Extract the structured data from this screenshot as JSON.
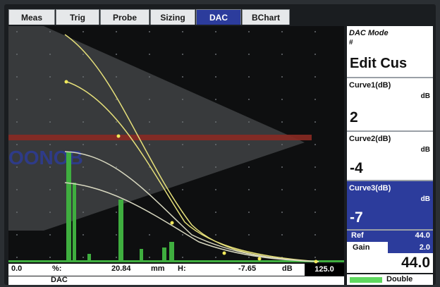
{
  "tabs": [
    {
      "label": "Meas",
      "active": false
    },
    {
      "label": "Trig",
      "active": false
    },
    {
      "label": "Probe",
      "active": false
    },
    {
      "label": "Sizing",
      "active": false
    },
    {
      "label": "DAC",
      "active": true
    },
    {
      "label": "BChart",
      "active": false
    }
  ],
  "watermark": "OONOB",
  "readout": {
    "left_value": "0.0",
    "percent_label": "%:",
    "distance_value": "20.84",
    "distance_unit": "mm",
    "h_label": "H:",
    "db_value": "-7.65",
    "db_unit": "dB",
    "range_value": "125.0"
  },
  "status": {
    "text": "DAC"
  },
  "panel": {
    "mode_label": "DAC Mode",
    "mode_sub": "#",
    "mode_value": "Edit Cus",
    "curve1": {
      "label": "Curve1(dB)",
      "unit": "dB",
      "value": "2"
    },
    "curve2": {
      "label": "Curve2(dB)",
      "unit": "dB",
      "value": "-4"
    },
    "curve3": {
      "label": "Curve3(dB)",
      "unit": "dB",
      "value": "-7"
    },
    "ref": {
      "label": "Ref",
      "value": "44.0"
    },
    "gain": {
      "label": "Gain",
      "step": "2.0",
      "value": "44.0"
    },
    "double_label": "Double"
  },
  "colors": {
    "accent": "#2c3c9c",
    "curve": "#e6e07a",
    "curve_alt": "#d8d8c0",
    "echo": "#3fae3f",
    "gate": "#8a2a22"
  }
}
